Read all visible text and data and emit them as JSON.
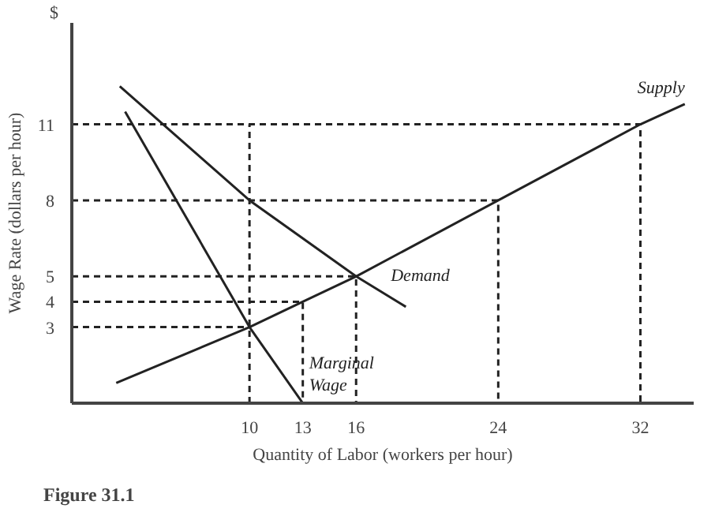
{
  "chart_data": {
    "type": "line",
    "xlabel": "Quantity of Labor (workers per hour)",
    "ylabel": "Wage Rate (dollars per hour)",
    "xlim": [
      0,
      35
    ],
    "ylim": [
      0,
      15
    ],
    "xticks": [
      10,
      13,
      16,
      24,
      32
    ],
    "yticks": [
      3,
      4,
      5,
      8,
      11
    ],
    "grid": false,
    "legend": false,
    "marker": "none",
    "series": [
      {
        "name": "Supply",
        "color": "#222222",
        "line_style": "solid",
        "x": [
          2.5,
          10,
          13,
          16,
          24,
          32,
          34.5
        ],
        "values": [
          0.8,
          3,
          4,
          5,
          8,
          11,
          11.8
        ]
      },
      {
        "name": "Demand",
        "color": "#222222",
        "line_style": "solid",
        "x": [
          2.7,
          10,
          16,
          18.8
        ],
        "values": [
          12.5,
          8,
          5,
          3.8
        ]
      },
      {
        "name": "Marginal\nWage",
        "color": "#222222",
        "line_style": "solid",
        "x": [
          3,
          10,
          13
        ],
        "values": [
          11.5,
          3,
          0
        ]
      },
      {
        "color": "#222222",
        "line_style": "dashed",
        "x": [
          0,
          32,
          32
        ],
        "values": [
          11,
          11,
          0
        ]
      },
      {
        "color": "#222222",
        "line_style": "dashed",
        "x": [
          0,
          24,
          24
        ],
        "values": [
          8,
          8,
          0
        ]
      },
      {
        "color": "#222222",
        "line_style": "dashed",
        "x": [
          0,
          16,
          16
        ],
        "values": [
          5,
          5,
          0
        ]
      },
      {
        "color": "#222222",
        "line_style": "dashed",
        "x": [
          0,
          13,
          13
        ],
        "values": [
          4,
          4,
          0
        ]
      },
      {
        "color": "#222222",
        "line_style": "dashed",
        "x": [
          0,
          10
        ],
        "values": [
          3,
          3
        ]
      },
      {
        "color": "#222222",
        "line_style": "dashed",
        "x": [
          10,
          10
        ],
        "values": [
          0,
          11
        ]
      }
    ],
    "annotations": [
      "$",
      "Figure 31.1"
    ]
  }
}
